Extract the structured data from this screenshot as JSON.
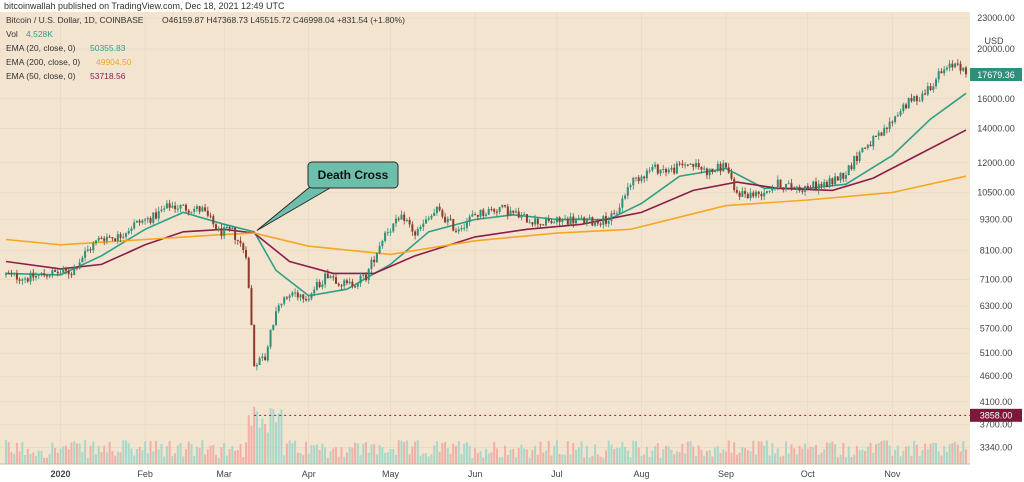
{
  "header": {
    "publisher_line": "bitcoinwallah published on TradingView.com, Dec 18, 2021 12:49 UTC"
  },
  "colors": {
    "background": "#f3e4d0",
    "up": "#2f8f7a",
    "down": "#8a3b2a",
    "ema20": "#2f9f87",
    "ema200": "#f5a623",
    "ema50": "#8b1e4a",
    "callout_fill": "#6dbfab",
    "vol_up": "#9fd6c9",
    "vol_down": "#efaaa2"
  },
  "legend": {
    "symbol": "Bitcoin / U.S. Dollar, 1D, COINBASE",
    "ohlc": "O46159.87 H47368.73 L45515.72 C46998.04 +831.54 (+1.80%)",
    "vol_label": "Vol",
    "vol_value": "4.528K",
    "ema20_label": "EMA (20, close, 0)",
    "ema20_value": "50355.83",
    "ema200_label": "EMA (200, close, 0)",
    "ema200_value": "49904.50",
    "ema50_label": "EMA (50, close, 0)",
    "ema50_value": "53718.56"
  },
  "annotation": {
    "text": "Death Cross",
    "target_date": "2020-03-13",
    "target_price": 8850
  },
  "chart_data": {
    "type": "line",
    "y_scale": "log",
    "y_currency": "USD",
    "ylim": [
      3100,
      23000
    ],
    "y_ticks": [
      23000,
      20000,
      16000,
      14000,
      12000,
      10500,
      9300,
      8100,
      7100,
      6300,
      5700,
      5100,
      4600,
      4100,
      3700,
      3340
    ],
    "y_tick_labels": [
      "23000.00",
      "20000.00",
      "16000.00",
      "14000.00",
      "12000.00",
      "10500.00",
      "9300.00",
      "8100.00",
      "7100.00",
      "6300.00",
      "5700.00",
      "5100.00",
      "4600.00",
      "4100.00",
      "3700.00",
      "3340.00"
    ],
    "x_labels": [
      {
        "label": "2020",
        "date": "2020-01-01"
      },
      {
        "label": "Feb",
        "date": "2020-02-01"
      },
      {
        "label": "Mar",
        "date": "2020-03-01"
      },
      {
        "label": "Apr",
        "date": "2020-04-01"
      },
      {
        "label": "May",
        "date": "2020-05-01"
      },
      {
        "label": "Jun",
        "date": "2020-06-01"
      },
      {
        "label": "Jul",
        "date": "2020-07-01"
      },
      {
        "label": "Aug",
        "date": "2020-08-01"
      },
      {
        "label": "Sep",
        "date": "2020-09-01"
      },
      {
        "label": "Oct",
        "date": "2020-10-01"
      },
      {
        "label": "Nov",
        "date": "2020-11-01"
      }
    ],
    "x_range": [
      "2019-12-12",
      "2020-11-28"
    ],
    "last_price_label": "17679.36",
    "dotted_level_label": "3858.00",
    "dotted_level_value": 3858,
    "series": [
      {
        "name": "BTC/USD close",
        "kind": "price",
        "points": [
          [
            "2019-12-12",
            7250
          ],
          [
            "2019-12-20",
            7150
          ],
          [
            "2019-12-28",
            7300
          ],
          [
            "2020-01-05",
            7350
          ],
          [
            "2020-01-10",
            8000
          ],
          [
            "2020-01-16",
            8600
          ],
          [
            "2020-01-22",
            8600
          ],
          [
            "2020-01-28",
            9100
          ],
          [
            "2020-02-04",
            9400
          ],
          [
            "2020-02-10",
            9900
          ],
          [
            "2020-02-16",
            9800
          ],
          [
            "2020-02-22",
            9700
          ],
          [
            "2020-02-28",
            8800
          ],
          [
            "2020-03-04",
            8800
          ],
          [
            "2020-03-09",
            8000
          ],
          [
            "2020-03-12",
            4900
          ],
          [
            "2020-03-16",
            5000
          ],
          [
            "2020-03-20",
            6200
          ],
          [
            "2020-03-26",
            6700
          ],
          [
            "2020-04-01",
            6600
          ],
          [
            "2020-04-08",
            7300
          ],
          [
            "2020-04-15",
            6900
          ],
          [
            "2020-04-22",
            7200
          ],
          [
            "2020-04-29",
            8800
          ],
          [
            "2020-05-06",
            9400
          ],
          [
            "2020-05-10",
            8700
          ],
          [
            "2020-05-18",
            9700
          ],
          [
            "2020-05-25",
            8900
          ],
          [
            "2020-06-01",
            9500
          ],
          [
            "2020-06-10",
            9800
          ],
          [
            "2020-06-18",
            9400
          ],
          [
            "2020-06-26",
            9150
          ],
          [
            "2020-07-06",
            9300
          ],
          [
            "2020-07-15",
            9200
          ],
          [
            "2020-07-22",
            9400
          ],
          [
            "2020-07-28",
            11000
          ],
          [
            "2020-08-05",
            11700
          ],
          [
            "2020-08-12",
            11600
          ],
          [
            "2020-08-18",
            12000
          ],
          [
            "2020-08-26",
            11500
          ],
          [
            "2020-09-01",
            11900
          ],
          [
            "2020-09-04",
            10500
          ],
          [
            "2020-09-12",
            10400
          ],
          [
            "2020-09-20",
            10900
          ],
          [
            "2020-09-28",
            10700
          ],
          [
            "2020-10-08",
            10900
          ],
          [
            "2020-10-15",
            11500
          ],
          [
            "2020-10-21",
            12800
          ],
          [
            "2020-10-28",
            13600
          ],
          [
            "2020-11-05",
            15500
          ],
          [
            "2020-11-12",
            16300
          ],
          [
            "2020-11-18",
            17800
          ],
          [
            "2020-11-22",
            18400
          ],
          [
            "2020-11-25",
            19000
          ],
          [
            "2020-11-28",
            17679.36
          ]
        ]
      },
      {
        "name": "EMA (20, close, 0)",
        "kind": "ema20",
        "points": [
          [
            "2019-12-12",
            7300
          ],
          [
            "2020-01-01",
            7250
          ],
          [
            "2020-01-16",
            7900
          ],
          [
            "2020-02-01",
            8900
          ],
          [
            "2020-02-15",
            9600
          ],
          [
            "2020-03-01",
            9100
          ],
          [
            "2020-03-12",
            8800
          ],
          [
            "2020-03-20",
            7400
          ],
          [
            "2020-04-01",
            6600
          ],
          [
            "2020-04-15",
            6800
          ],
          [
            "2020-05-01",
            7600
          ],
          [
            "2020-05-15",
            8800
          ],
          [
            "2020-06-01",
            9300
          ],
          [
            "2020-06-15",
            9500
          ],
          [
            "2020-07-01",
            9300
          ],
          [
            "2020-07-20",
            9300
          ],
          [
            "2020-08-01",
            10000
          ],
          [
            "2020-08-15",
            11300
          ],
          [
            "2020-09-01",
            11700
          ],
          [
            "2020-09-15",
            10700
          ],
          [
            "2020-10-01",
            10700
          ],
          [
            "2020-10-15",
            10900
          ],
          [
            "2020-11-01",
            12400
          ],
          [
            "2020-11-15",
            14600
          ],
          [
            "2020-11-28",
            16400
          ]
        ]
      },
      {
        "name": "EMA (50, close, 0)",
        "kind": "ema50",
        "points": [
          [
            "2019-12-12",
            7700
          ],
          [
            "2020-01-01",
            7450
          ],
          [
            "2020-01-16",
            7600
          ],
          [
            "2020-02-01",
            8300
          ],
          [
            "2020-02-15",
            8800
          ],
          [
            "2020-03-01",
            8900
          ],
          [
            "2020-03-12",
            8750
          ],
          [
            "2020-03-25",
            7700
          ],
          [
            "2020-04-10",
            7300
          ],
          [
            "2020-04-25",
            7300
          ],
          [
            "2020-05-10",
            7900
          ],
          [
            "2020-06-01",
            8600
          ],
          [
            "2020-06-20",
            8900
          ],
          [
            "2020-07-10",
            9100
          ],
          [
            "2020-08-01",
            9600
          ],
          [
            "2020-08-20",
            10600
          ],
          [
            "2020-09-05",
            11000
          ],
          [
            "2020-09-20",
            10700
          ],
          [
            "2020-10-10",
            10600
          ],
          [
            "2020-10-25",
            11200
          ],
          [
            "2020-11-10",
            12400
          ],
          [
            "2020-11-28",
            13900
          ]
        ]
      },
      {
        "name": "EMA (200, close, 0)",
        "kind": "ema200",
        "points": [
          [
            "2019-12-12",
            8500
          ],
          [
            "2020-01-01",
            8300
          ],
          [
            "2020-02-01",
            8500
          ],
          [
            "2020-03-01",
            8700
          ],
          [
            "2020-03-12",
            8750
          ],
          [
            "2020-04-01",
            8250
          ],
          [
            "2020-05-01",
            7950
          ],
          [
            "2020-06-01",
            8450
          ],
          [
            "2020-07-01",
            8750
          ],
          [
            "2020-07-28",
            8900
          ],
          [
            "2020-09-01",
            9900
          ],
          [
            "2020-10-01",
            10150
          ],
          [
            "2020-11-01",
            10500
          ],
          [
            "2020-11-28",
            11300
          ]
        ]
      }
    ]
  }
}
